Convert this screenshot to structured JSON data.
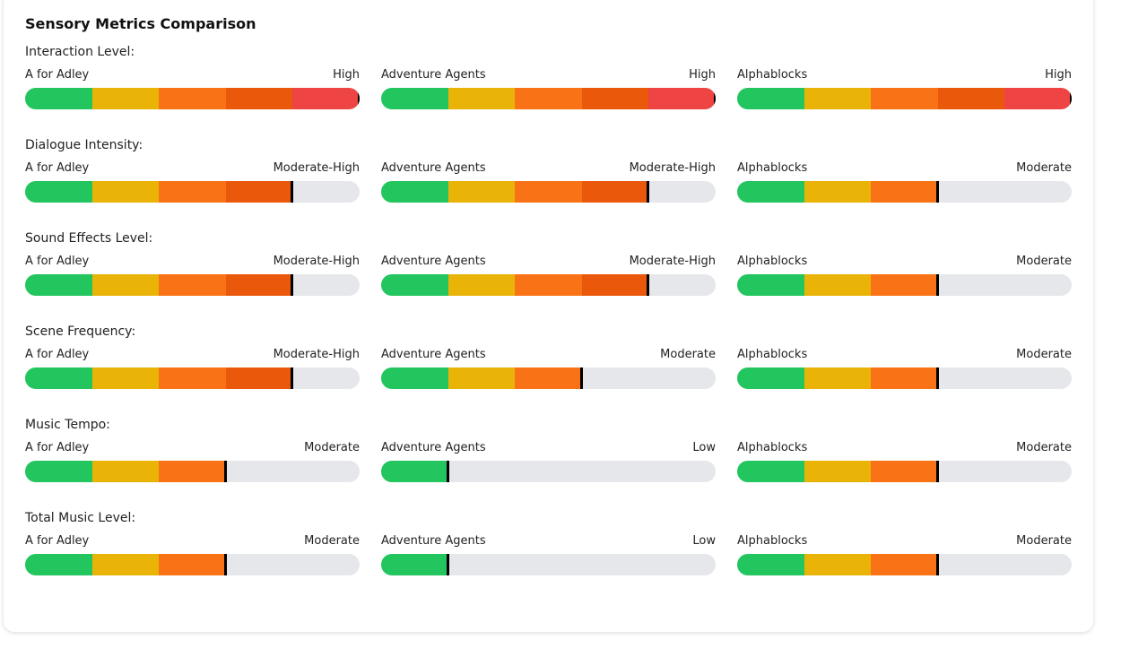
{
  "title": "Sensory Metrics Comparison",
  "level_max": 5,
  "segment_colors": [
    "#22c55e",
    "#eab308",
    "#f97316",
    "#ea580c",
    "#ef4444"
  ],
  "track_color": "#e5e7eb",
  "marker_color": "#000000",
  "metrics": [
    {
      "label": "Interaction Level:",
      "shows": [
        {
          "name": "A for Adley",
          "rating": "High",
          "level": 5
        },
        {
          "name": "Adventure Agents",
          "rating": "High",
          "level": 5
        },
        {
          "name": "Alphablocks",
          "rating": "High",
          "level": 5
        }
      ]
    },
    {
      "label": "Dialogue Intensity:",
      "shows": [
        {
          "name": "A for Adley",
          "rating": "Moderate-High",
          "level": 4
        },
        {
          "name": "Adventure Agents",
          "rating": "Moderate-High",
          "level": 4
        },
        {
          "name": "Alphablocks",
          "rating": "Moderate",
          "level": 3
        }
      ]
    },
    {
      "label": "Sound Effects Level:",
      "shows": [
        {
          "name": "A for Adley",
          "rating": "Moderate-High",
          "level": 4
        },
        {
          "name": "Adventure Agents",
          "rating": "Moderate-High",
          "level": 4
        },
        {
          "name": "Alphablocks",
          "rating": "Moderate",
          "level": 3
        }
      ]
    },
    {
      "label": "Scene Frequency:",
      "shows": [
        {
          "name": "A for Adley",
          "rating": "Moderate-High",
          "level": 4
        },
        {
          "name": "Adventure Agents",
          "rating": "Moderate",
          "level": 3
        },
        {
          "name": "Alphablocks",
          "rating": "Moderate",
          "level": 3
        }
      ]
    },
    {
      "label": "Music Tempo:",
      "shows": [
        {
          "name": "A for Adley",
          "rating": "Moderate",
          "level": 3
        },
        {
          "name": "Adventure Agents",
          "rating": "Low",
          "level": 1
        },
        {
          "name": "Alphablocks",
          "rating": "Moderate",
          "level": 3
        }
      ]
    },
    {
      "label": "Total Music Level:",
      "shows": [
        {
          "name": "A for Adley",
          "rating": "Moderate",
          "level": 3
        },
        {
          "name": "Adventure Agents",
          "rating": "Low",
          "level": 1
        },
        {
          "name": "Alphablocks",
          "rating": "Moderate",
          "level": 3
        }
      ]
    }
  ]
}
